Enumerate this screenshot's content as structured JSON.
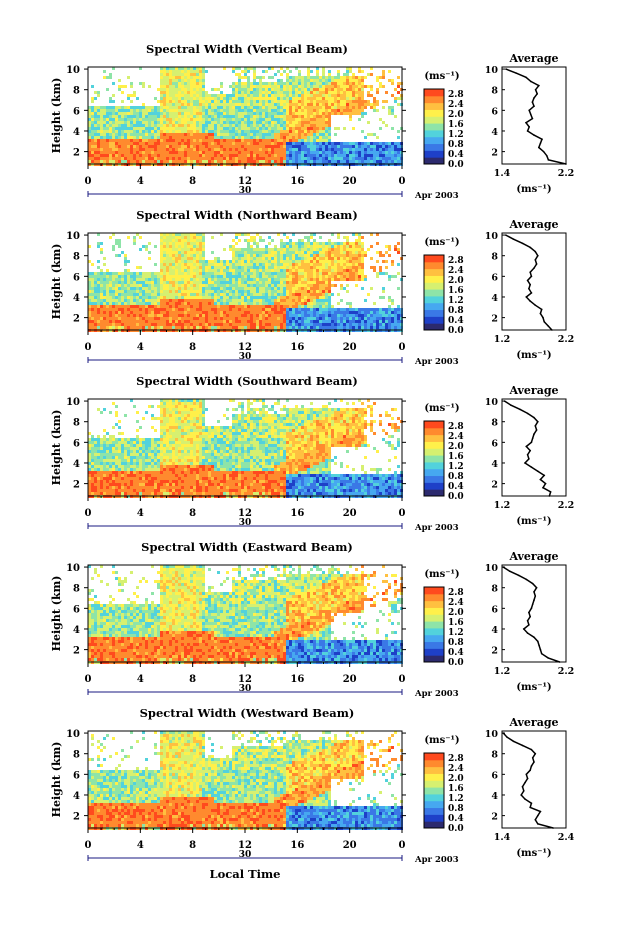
{
  "figure": {
    "xlabel": "Local Time",
    "cbar_unit": "(ms⁻¹)",
    "date_mid": "30",
    "date_right": "Apr 2003",
    "x_ticks": [
      "0",
      "4",
      "8",
      "12",
      "16",
      "20",
      "0"
    ],
    "y_ticks": [
      "2",
      "4",
      "6",
      "8",
      "10"
    ],
    "cbar_ticks": [
      "0.0",
      "0.4",
      "0.8",
      "1.2",
      "1.6",
      "2.0",
      "2.4",
      "2.8"
    ],
    "avg_title": "Average",
    "avg_xlabel": "(ms⁻¹)",
    "colors": [
      "#2c2a6e",
      "#1e40c8",
      "#3a78e6",
      "#46a8f0",
      "#52d2dc",
      "#8ee4a8",
      "#d6f070",
      "#fff04a",
      "#ffc040",
      "#ff8a2e",
      "#ff4a1e"
    ]
  },
  "chart_data": [
    {
      "type": "heatmap",
      "title": "Spectral Width (Vertical Beam)",
      "xlabel": "",
      "ylabel": "Height (km)",
      "xlim": [
        0,
        24
      ],
      "ylim": [
        0.8,
        10.2
      ],
      "zlim": [
        0.0,
        3.0
      ],
      "avg_profile": {
        "xlim": [
          1.4,
          2.2
        ],
        "x_ticks": [
          "1.4",
          "2.2"
        ],
        "heights": [
          0.8,
          1.2,
          1.6,
          2.0,
          2.4,
          2.8,
          3.2,
          3.6,
          4.0,
          4.4,
          4.8,
          5.2,
          5.6,
          6.0,
          6.4,
          6.8,
          7.2,
          7.6,
          8.0,
          8.4,
          8.8,
          9.2,
          9.6,
          10.0
        ],
        "values": [
          2.2,
          1.98,
          1.96,
          1.92,
          1.86,
          1.88,
          1.9,
          1.8,
          1.72,
          1.74,
          1.7,
          1.78,
          1.76,
          1.74,
          1.8,
          1.78,
          1.8,
          1.84,
          1.82,
          1.86,
          1.76,
          1.7,
          1.58,
          1.45
        ]
      }
    },
    {
      "type": "heatmap",
      "title": "Spectral Width (Northward Beam)",
      "xlabel": "",
      "ylabel": "Height (km)",
      "xlim": [
        0,
        24
      ],
      "ylim": [
        0.8,
        10.2
      ],
      "zlim": [
        0.0,
        3.0
      ],
      "avg_profile": {
        "xlim": [
          1.2,
          2.2
        ],
        "x_ticks": [
          "1.2",
          "2.2"
        ],
        "heights": [
          0.8,
          1.2,
          1.6,
          2.0,
          2.4,
          2.8,
          3.2,
          3.6,
          4.0,
          4.4,
          4.8,
          5.2,
          5.6,
          6.0,
          6.4,
          6.8,
          7.2,
          7.6,
          8.0,
          8.4,
          8.8,
          9.2,
          9.6,
          10.0
        ],
        "values": [
          1.98,
          1.92,
          1.86,
          1.84,
          1.8,
          1.82,
          1.72,
          1.64,
          1.58,
          1.66,
          1.62,
          1.64,
          1.6,
          1.66,
          1.64,
          1.7,
          1.74,
          1.72,
          1.76,
          1.72,
          1.64,
          1.52,
          1.38,
          1.26
        ]
      }
    },
    {
      "type": "heatmap",
      "title": "Spectral Width (Southward Beam)",
      "xlabel": "",
      "ylabel": "Height (km)",
      "xlim": [
        0,
        24
      ],
      "ylim": [
        0.8,
        10.2
      ],
      "zlim": [
        0.0,
        3.0
      ],
      "avg_profile": {
        "xlim": [
          1.2,
          2.2
        ],
        "x_ticks": [
          "1.2",
          "2.2"
        ],
        "heights": [
          0.8,
          1.2,
          1.6,
          2.0,
          2.4,
          2.8,
          3.2,
          3.6,
          4.0,
          4.4,
          4.8,
          5.2,
          5.6,
          6.0,
          6.4,
          6.8,
          7.2,
          7.6,
          8.0,
          8.4,
          8.8,
          9.2,
          9.6,
          10.0
        ],
        "values": [
          1.94,
          1.96,
          1.84,
          1.88,
          1.8,
          1.86,
          1.76,
          1.66,
          1.56,
          1.62,
          1.6,
          1.64,
          1.58,
          1.66,
          1.68,
          1.7,
          1.74,
          1.72,
          1.76,
          1.7,
          1.6,
          1.48,
          1.34,
          1.24
        ]
      }
    },
    {
      "type": "heatmap",
      "title": "Spectral Width (Eastward Beam)",
      "xlabel": "",
      "ylabel": "Height (km)",
      "xlim": [
        0,
        24
      ],
      "ylim": [
        0.8,
        10.2
      ],
      "zlim": [
        0.0,
        3.0
      ],
      "avg_profile": {
        "xlim": [
          1.2,
          2.2
        ],
        "x_ticks": [
          "1.2",
          "2.2"
        ],
        "heights": [
          0.8,
          1.2,
          1.6,
          2.0,
          2.4,
          2.8,
          3.2,
          3.6,
          4.0,
          4.4,
          4.8,
          5.2,
          5.6,
          6.0,
          6.4,
          6.8,
          7.2,
          7.6,
          8.0,
          8.4,
          8.8,
          9.2,
          9.6,
          10.0
        ],
        "values": [
          2.1,
          1.92,
          1.82,
          1.8,
          1.78,
          1.76,
          1.7,
          1.6,
          1.54,
          1.62,
          1.6,
          1.64,
          1.62,
          1.66,
          1.68,
          1.7,
          1.72,
          1.7,
          1.74,
          1.68,
          1.58,
          1.46,
          1.32,
          1.22
        ]
      }
    },
    {
      "type": "heatmap",
      "title": "Spectral Width (Westward Beam)",
      "xlabel": "Local Time",
      "ylabel": "Height (km)",
      "xlim": [
        0,
        24
      ],
      "ylim": [
        0.8,
        10.2
      ],
      "zlim": [
        0.0,
        3.0
      ],
      "avg_profile": {
        "xlim": [
          1.4,
          2.4
        ],
        "x_ticks": [
          "1.4",
          "2.4"
        ],
        "heights": [
          0.8,
          1.2,
          1.6,
          2.0,
          2.4,
          2.8,
          3.2,
          3.6,
          4.0,
          4.4,
          4.8,
          5.2,
          5.6,
          6.0,
          6.4,
          6.8,
          7.2,
          7.6,
          8.0,
          8.4,
          8.8,
          9.2,
          9.6,
          10.0
        ],
        "values": [
          2.2,
          1.96,
          1.92,
          1.96,
          2.0,
          1.84,
          1.86,
          1.76,
          1.7,
          1.74,
          1.72,
          1.76,
          1.8,
          1.78,
          1.84,
          1.86,
          1.9,
          1.88,
          1.92,
          1.86,
          1.72,
          1.58,
          1.48,
          1.42
        ]
      }
    }
  ]
}
